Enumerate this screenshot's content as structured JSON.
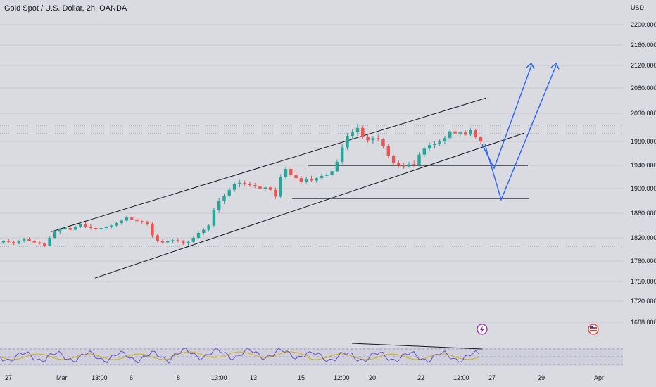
{
  "header": {
    "title": "Gold Spot / U.S. Dollar, 2h, OANDA"
  },
  "axis": {
    "currency": "USD"
  },
  "chart_data": {
    "type": "candlestick",
    "title": "Gold Spot / U.S. Dollar, 2h, OANDA",
    "y_unit": "USD",
    "ylim": [
      1660,
      2240
    ],
    "y_ticks": [
      "2200.000",
      "2160.000",
      "2120.000",
      "2080.000",
      "2030.000",
      "1980.000",
      "1940.000",
      "1900.000",
      "1860.000",
      "1820.000",
      "1780.000",
      "1750.000",
      "1720.000",
      "1688.000"
    ],
    "x_ticks": [
      "27",
      "Mar",
      "13:00",
      "6",
      "8",
      "13:00",
      "13",
      "15",
      "12:00",
      "20",
      "22",
      "12:00",
      "27",
      "29",
      "Apr"
    ],
    "grid": true,
    "candles": [
      [
        1812,
        1816,
        1809,
        1815
      ],
      [
        1815,
        1818,
        1811,
        1813
      ],
      [
        1813,
        1815,
        1808,
        1810
      ],
      [
        1810,
        1816,
        1809,
        1814
      ],
      [
        1814,
        1820,
        1812,
        1818
      ],
      [
        1818,
        1821,
        1814,
        1815
      ],
      [
        1815,
        1817,
        1810,
        1812
      ],
      [
        1812,
        1815,
        1808,
        1810
      ],
      [
        1810,
        1812,
        1804,
        1806
      ],
      [
        1806,
        1822,
        1805,
        1820
      ],
      [
        1820,
        1832,
        1818,
        1830
      ],
      [
        1830,
        1836,
        1826,
        1834
      ],
      [
        1834,
        1840,
        1830,
        1836
      ],
      [
        1836,
        1839,
        1831,
        1833
      ],
      [
        1833,
        1840,
        1832,
        1838
      ],
      [
        1838,
        1845,
        1836,
        1842
      ],
      [
        1842,
        1846,
        1836,
        1838
      ],
      [
        1838,
        1842,
        1833,
        1836
      ],
      [
        1836,
        1839,
        1832,
        1834
      ],
      [
        1834,
        1838,
        1831,
        1836
      ],
      [
        1836,
        1840,
        1833,
        1838
      ],
      [
        1838,
        1842,
        1835,
        1840
      ],
      [
        1840,
        1846,
        1838,
        1844
      ],
      [
        1844,
        1850,
        1841,
        1848
      ],
      [
        1848,
        1856,
        1846,
        1853
      ],
      [
        1853,
        1858,
        1848,
        1850
      ],
      [
        1850,
        1853,
        1845,
        1847
      ],
      [
        1847,
        1850,
        1843,
        1846
      ],
      [
        1846,
        1848,
        1840,
        1843
      ],
      [
        1843,
        1845,
        1820,
        1824
      ],
      [
        1824,
        1826,
        1812,
        1815
      ],
      [
        1815,
        1818,
        1810,
        1812
      ],
      [
        1812,
        1816,
        1809,
        1814
      ],
      [
        1814,
        1818,
        1811,
        1816
      ],
      [
        1816,
        1820,
        1812,
        1814
      ],
      [
        1814,
        1816,
        1808,
        1810
      ],
      [
        1810,
        1815,
        1807,
        1813
      ],
      [
        1813,
        1822,
        1811,
        1820
      ],
      [
        1820,
        1830,
        1818,
        1828
      ],
      [
        1828,
        1836,
        1825,
        1833
      ],
      [
        1833,
        1842,
        1830,
        1840
      ],
      [
        1840,
        1868,
        1838,
        1865
      ],
      [
        1865,
        1885,
        1860,
        1880
      ],
      [
        1880,
        1892,
        1875,
        1888
      ],
      [
        1888,
        1902,
        1884,
        1898
      ],
      [
        1898,
        1912,
        1894,
        1908
      ],
      [
        1908,
        1915,
        1902,
        1910
      ],
      [
        1910,
        1914,
        1905,
        1908
      ],
      [
        1908,
        1912,
        1903,
        1906
      ],
      [
        1906,
        1910,
        1901,
        1904
      ],
      [
        1904,
        1908,
        1898,
        1900
      ],
      [
        1900,
        1904,
        1895,
        1902
      ],
      [
        1902,
        1905,
        1896,
        1898
      ],
      [
        1898,
        1902,
        1883,
        1887
      ],
      [
        1887,
        1925,
        1885,
        1920
      ],
      [
        1920,
        1938,
        1916,
        1934
      ],
      [
        1934,
        1938,
        1920,
        1924
      ],
      [
        1924,
        1930,
        1916,
        1918
      ],
      [
        1918,
        1922,
        1908,
        1912
      ],
      [
        1912,
        1920,
        1909,
        1916
      ],
      [
        1916,
        1922,
        1911,
        1914
      ],
      [
        1914,
        1920,
        1910,
        1918
      ],
      [
        1918,
        1926,
        1915,
        1922
      ],
      [
        1922,
        1928,
        1918,
        1924
      ],
      [
        1924,
        1932,
        1921,
        1930
      ],
      [
        1930,
        1950,
        1928,
        1946
      ],
      [
        1946,
        1975,
        1942,
        1970
      ],
      [
        1970,
        1995,
        1966,
        1990
      ],
      [
        1990,
        2002,
        1984,
        1996
      ],
      [
        1996,
        2012,
        1990,
        2004
      ],
      [
        2004,
        2008,
        1985,
        1988
      ],
      [
        1988,
        1994,
        1978,
        1982
      ],
      [
        1982,
        1990,
        1976,
        1986
      ],
      [
        1986,
        1992,
        1980,
        1984
      ],
      [
        1984,
        1986,
        1968,
        1972
      ],
      [
        1972,
        1976,
        1952,
        1956
      ],
      [
        1956,
        1958,
        1940,
        1944
      ],
      [
        1944,
        1948,
        1936,
        1940
      ],
      [
        1940,
        1944,
        1934,
        1938
      ],
      [
        1938,
        1946,
        1936,
        1942
      ],
      [
        1942,
        1948,
        1938,
        1940
      ],
      [
        1940,
        1962,
        1938,
        1958
      ],
      [
        1958,
        1972,
        1954,
        1968
      ],
      [
        1968,
        1978,
        1964,
        1974
      ],
      [
        1974,
        1980,
        1968,
        1976
      ],
      [
        1976,
        1984,
        1972,
        1980
      ],
      [
        1980,
        1990,
        1976,
        1986
      ],
      [
        1986,
        2002,
        1982,
        1998
      ],
      [
        1998,
        2002,
        1992,
        1994
      ],
      [
        1994,
        1998,
        1989,
        1996
      ],
      [
        1996,
        2000,
        1990,
        1992
      ],
      [
        1992,
        2004,
        1990,
        2000
      ],
      [
        2000,
        2002,
        1985,
        1988
      ],
      [
        1988,
        1990,
        1976,
        1980
      ]
    ],
    "colors": {
      "up": "#26a69a",
      "down": "#ef5350"
    }
  },
  "annotations": {
    "channel_upper": [
      [
        73,
        1830
      ],
      [
        690,
        2060
      ]
    ],
    "channel_lower": [
      [
        135,
        1755
      ],
      [
        745,
        1995
      ]
    ],
    "support_upper": [
      [
        437,
        1940
      ],
      [
        750,
        1940
      ]
    ],
    "support_lower": [
      [
        415,
        1884
      ],
      [
        752,
        1884
      ]
    ],
    "projection_a": [
      [
        685,
        1975
      ],
      [
        702,
        1935
      ],
      [
        755,
        2120
      ]
    ],
    "projection_b": [
      [
        689,
        1975
      ],
      [
        712,
        1882
      ],
      [
        790,
        2120
      ]
    ],
    "divergence": [
      [
        500,
        2060
      ],
      [
        685,
        2040
      ]
    ]
  }
}
